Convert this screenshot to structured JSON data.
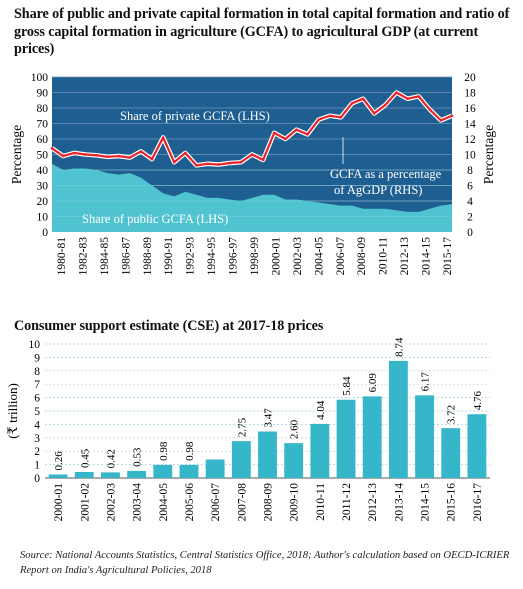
{
  "chart_data": [
    {
      "type": "area",
      "title": "Share of public and private capital formation in total capital formation and ratio of gross capital formation in agriculture (GCFA) to agricultural GDP (at current prices)",
      "ylabel_left": "Percentage",
      "ylabel_right": "Percentage",
      "ylim_left": [
        0,
        100
      ],
      "ylim_right": [
        0,
        20
      ],
      "yticks_left": [
        "0",
        "10",
        "20",
        "30",
        "40",
        "50",
        "60",
        "70",
        "80",
        "90",
        "100"
      ],
      "yticks_right": [
        "0",
        "2",
        "4",
        "6",
        "8",
        "10",
        "12",
        "14",
        "16",
        "18",
        "20"
      ],
      "xticks": [
        "1980-81",
        "1982-83",
        "1984-85",
        "1986-87",
        "1988-89",
        "1990-91",
        "1992-93",
        "1994-95",
        "1996-97",
        "1998-99",
        "2000-01",
        "2002-03",
        "2004-05",
        "2006-07",
        "2008-09",
        "2010-11",
        "2012-13",
        "2014-15",
        "2015-17"
      ],
      "x": [
        "1980-81",
        "1981-82",
        "1982-83",
        "1983-84",
        "1984-85",
        "1985-86",
        "1986-87",
        "1987-88",
        "1988-89",
        "1989-90",
        "1990-91",
        "1991-92",
        "1992-93",
        "1993-94",
        "1994-95",
        "1995-96",
        "1996-97",
        "1997-98",
        "1998-99",
        "1999-00",
        "2000-01",
        "2001-02",
        "2002-03",
        "2003-04",
        "2004-05",
        "2005-06",
        "2006-07",
        "2007-08",
        "2008-09",
        "2009-10",
        "2010-11",
        "2011-12",
        "2012-13",
        "2013-14",
        "2014-15",
        "2015-16",
        "2016-17"
      ],
      "series": [
        {
          "name": "Share of public GCFA (LHS)",
          "axis": "left",
          "values": [
            44,
            40,
            41,
            41,
            40,
            38,
            37,
            38,
            35,
            30,
            25,
            23,
            26,
            24,
            22,
            22,
            21,
            20,
            22,
            24,
            24,
            21,
            21,
            20,
            19,
            18,
            17,
            17,
            15,
            15,
            15,
            14,
            13,
            13,
            15,
            17,
            18
          ]
        },
        {
          "name": "Share of private GCFA (LHS)",
          "axis": "left",
          "values": [
            56,
            60,
            59,
            59,
            60,
            62,
            63,
            62,
            65,
            70,
            75,
            77,
            74,
            76,
            78,
            78,
            79,
            80,
            78,
            76,
            76,
            79,
            79,
            80,
            81,
            82,
            83,
            83,
            85,
            85,
            85,
            86,
            87,
            87,
            85,
            83,
            82
          ]
        },
        {
          "name": "GCFA as a percentage of AgGDP (RHS)",
          "axis": "right",
          "values": [
            10.8,
            9.8,
            10.2,
            10.0,
            9.9,
            9.7,
            9.8,
            9.6,
            10.4,
            9.4,
            12.2,
            9.0,
            10.2,
            8.6,
            8.8,
            8.7,
            8.9,
            9.0,
            10.0,
            9.3,
            12.8,
            12.0,
            13.2,
            12.6,
            14.5,
            15.0,
            14.8,
            16.6,
            17.2,
            15.3,
            16.4,
            18.0,
            17.2,
            17.5,
            15.8,
            14.4,
            15.0
          ]
        }
      ],
      "annotations": [
        "Share of private GCFA (LHS)",
        "Share of public GCFA (LHS)",
        "GCFA as a percentage",
        "of AgGDP (RHS)"
      ],
      "colors": {
        "private": "#1f5e91",
        "public": "#4fc3d0",
        "ratio_line": "#e8242b",
        "ratio_halo": "#ffffff",
        "grid": "#6f97b8"
      }
    },
    {
      "type": "bar",
      "title": "Consumer support estimate (CSE) at 2017-18 prices",
      "ylabel": "(₹ trillion)",
      "ylim": [
        0,
        10
      ],
      "yticks": [
        "0",
        "1",
        "2",
        "3",
        "4",
        "5",
        "6",
        "7",
        "8",
        "9",
        "10"
      ],
      "categories": [
        "2000-01",
        "2001-02",
        "2002-03",
        "2003-04",
        "2004-05",
        "2005-06",
        "2006-07",
        "2007-08",
        "2008-09",
        "2009-10",
        "2010-11",
        "2011-12",
        "2012-13",
        "2013-14",
        "2014-15",
        "2015-16",
        "2016-17"
      ],
      "values": [
        0.26,
        0.45,
        0.42,
        0.53,
        0.98,
        0.98,
        1.38,
        2.75,
        3.47,
        2.6,
        4.04,
        5.84,
        6.09,
        8.74,
        6.17,
        3.72,
        4.76
      ],
      "value_labels": [
        "0.26",
        "0.45",
        "0.42",
        "0.53",
        "0.98",
        "0.98",
        "",
        "2.75",
        "3.47",
        "2.60",
        "4.04",
        "5.84",
        "6.09",
        "8.74",
        "6.17",
        "3.72",
        "4.76"
      ],
      "colors": {
        "bar": "#35b6c9",
        "grid": "#9ecfdb"
      }
    }
  ],
  "source": "Source: National Accounts Statistics, Central Statistics Office, 2018; Author's calculation based on OECD-ICRIER Report  on India's Agricultural Policies, 2018"
}
